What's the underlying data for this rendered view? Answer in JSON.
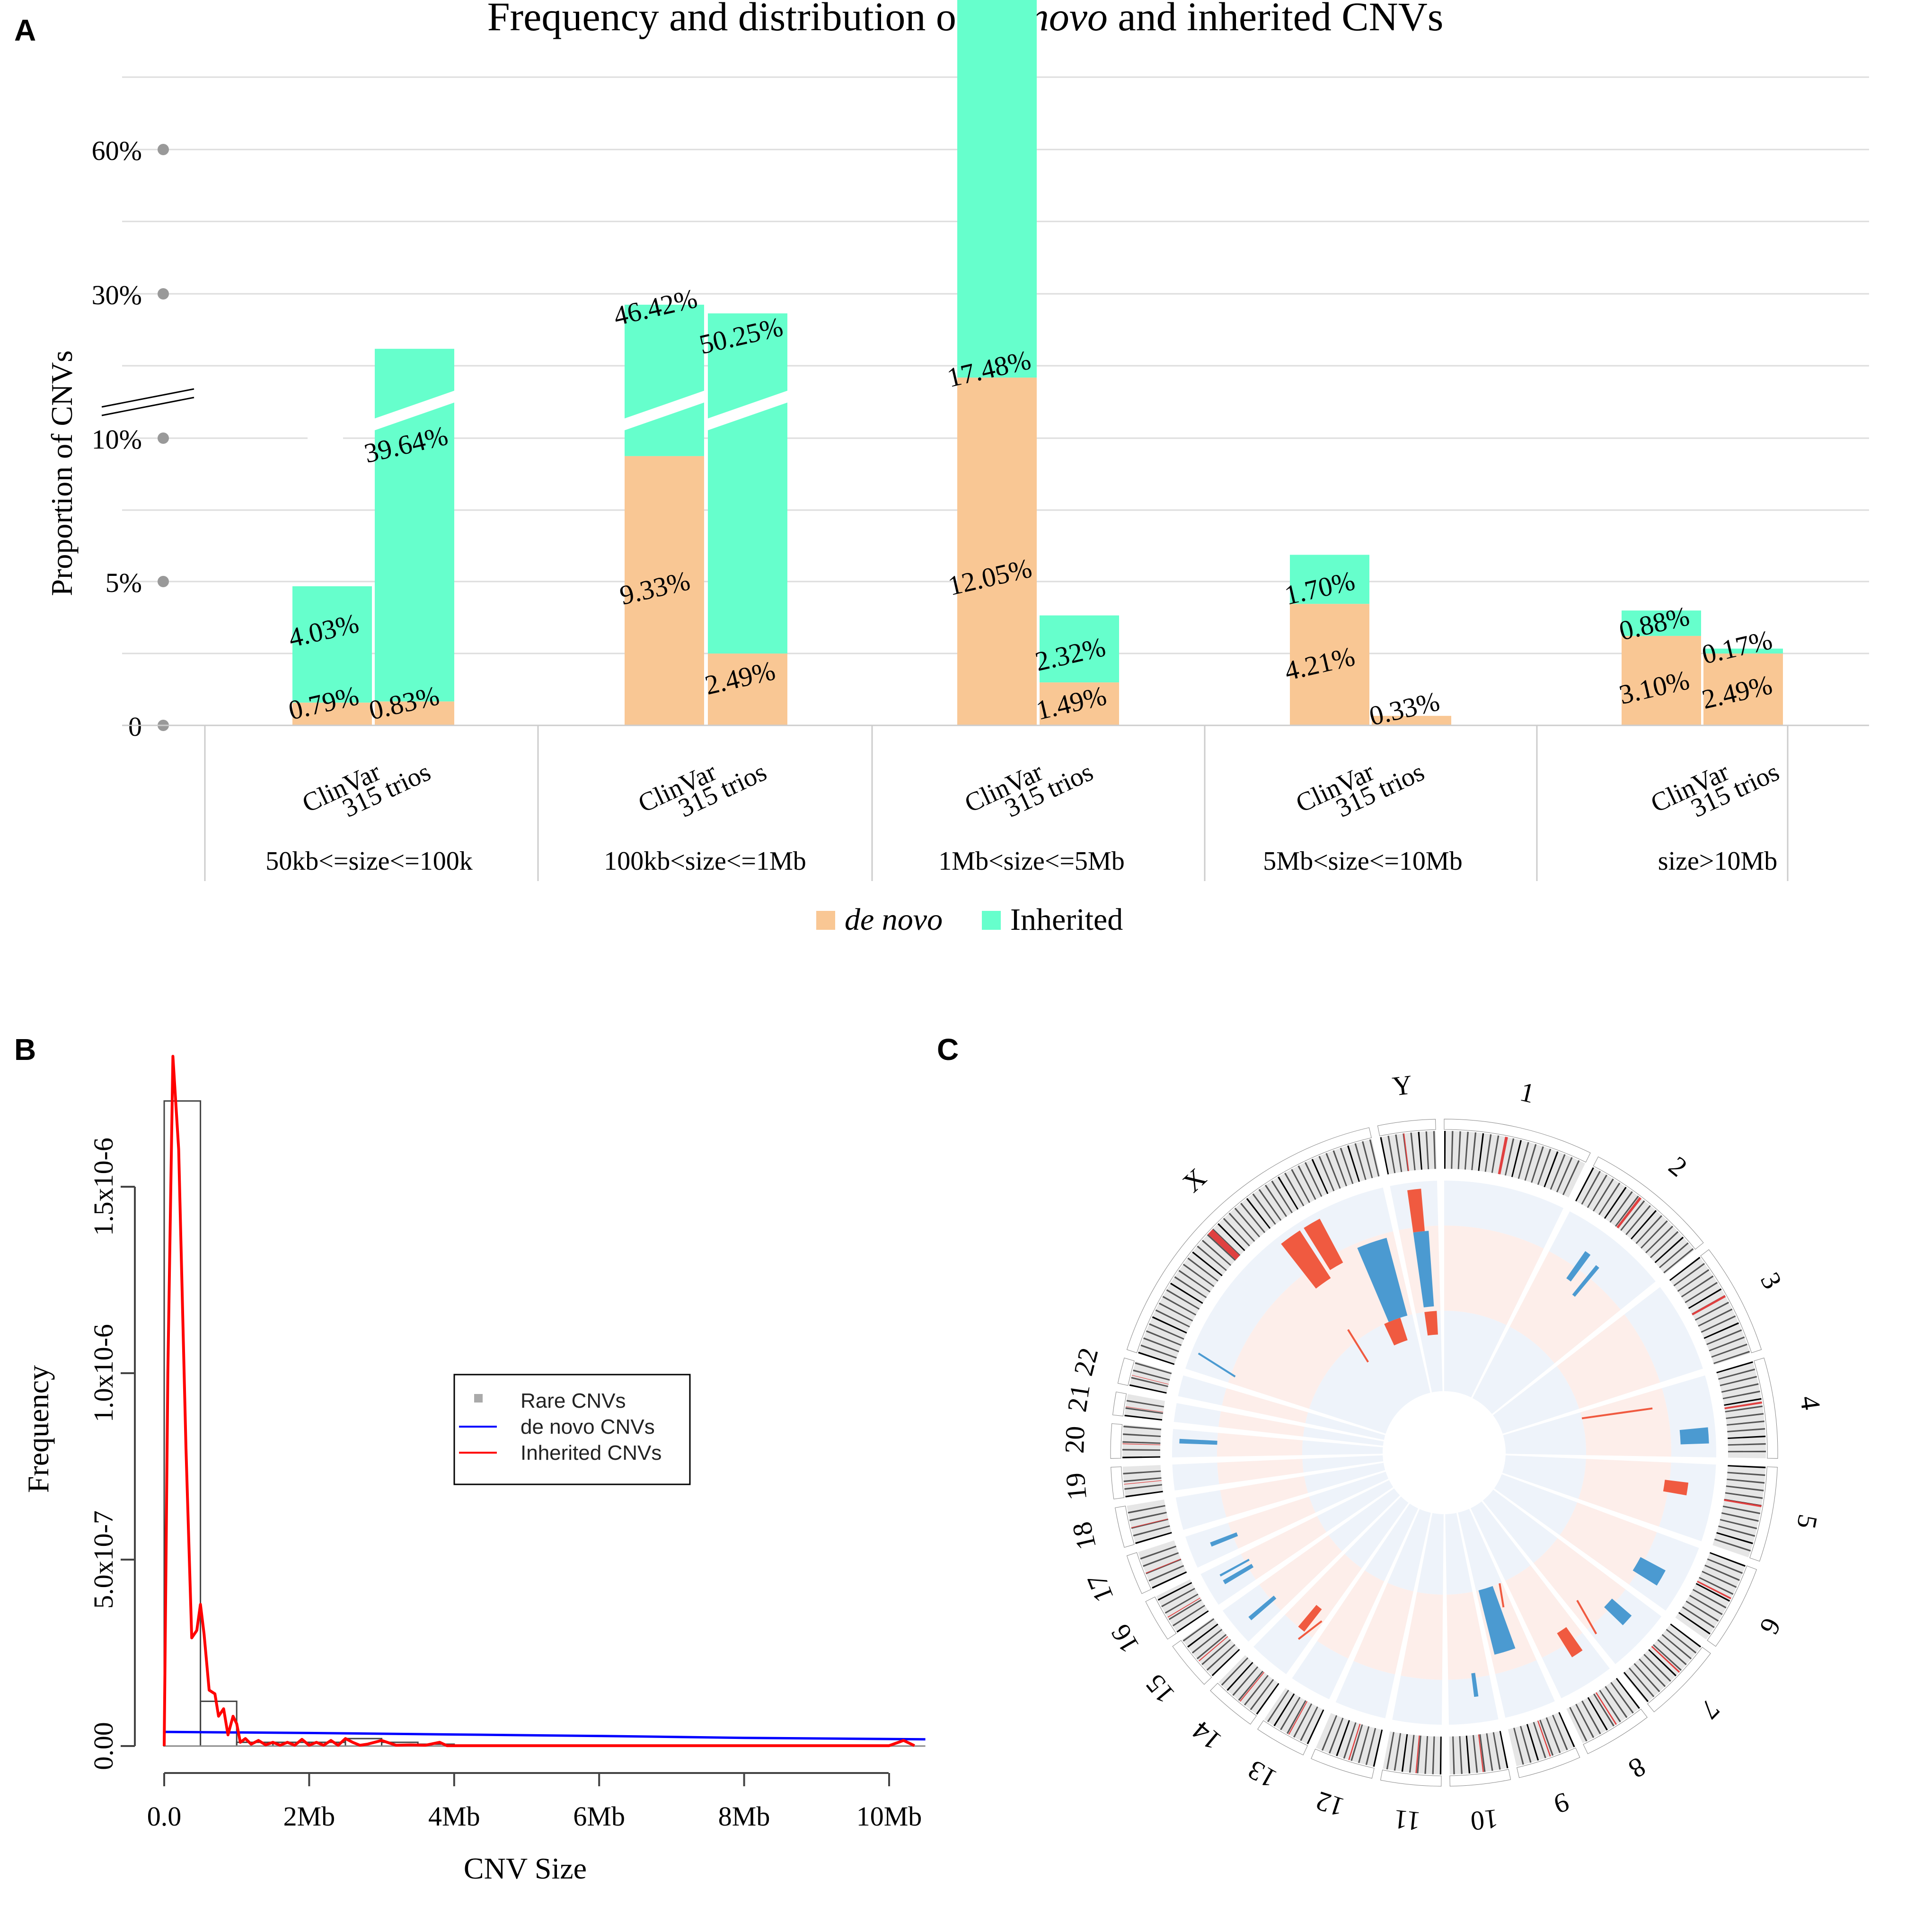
{
  "chart_data": [
    {
      "type": "bar",
      "panel": "A",
      "title_parts": [
        "Frequency and distribution of ",
        "de novo",
        " and inherited CNVs"
      ],
      "ylabel": "Proportion of CNVs",
      "y_ticks": [
        "60%",
        "30%",
        "10%",
        "5%",
        "0"
      ],
      "bar_labels": [
        "ClinVar",
        "315 trios"
      ],
      "groups": [
        {
          "label": "50kb<=size<=100k",
          "bars": [
            {
              "name": "ClinVar",
              "de_novo": 0.79,
              "inherited": 4.03
            },
            {
              "name": "315 trios",
              "de_novo": 0.83,
              "inherited": 39.64
            }
          ]
        },
        {
          "label": "100kb<size<=1Mb",
          "bars": [
            {
              "name": "ClinVar",
              "de_novo": 9.33,
              "inherited": 46.42
            },
            {
              "name": "315 trios",
              "de_novo": 2.49,
              "inherited": 50.25
            }
          ]
        },
        {
          "label": "1Mb<size<=5Mb",
          "bars": [
            {
              "name": "ClinVar",
              "de_novo": 12.05,
              "inherited": 17.48
            },
            {
              "name": "315 trios",
              "de_novo": 1.49,
              "inherited": 2.32
            }
          ]
        },
        {
          "label": "5Mb<size<=10Mb",
          "bars": [
            {
              "name": "ClinVar",
              "de_novo": 4.21,
              "inherited": 1.7
            },
            {
              "name": "315 trios",
              "de_novo": 0.33,
              "inherited": 0
            }
          ]
        },
        {
          "label": "size>10Mb",
          "bars": [
            {
              "name": "ClinVar",
              "de_novo": 3.1,
              "inherited": 0.88
            },
            {
              "name": "315 trios",
              "de_novo": 2.49,
              "inherited": 0.17
            }
          ]
        }
      ],
      "legend": [
        {
          "label": "de novo",
          "color": "#f9c794"
        },
        {
          "label": "Inherited",
          "color": "#66ffcc"
        }
      ],
      "axis_break": true
    },
    {
      "type": "line",
      "panel": "B",
      "xlabel": "CNV Size",
      "ylabel": "Frequency",
      "x_ticks": [
        "0.0",
        "2Mb",
        "4Mb",
        "6Mb",
        "8Mb",
        "10Mb"
      ],
      "y_ticks": [
        "0.00",
        "5.0x10-7",
        "1.0x10-6",
        "1.5x10-6"
      ],
      "xlim_mb": [
        0,
        10.5
      ],
      "ylim": [
        0,
        1.75e-06
      ],
      "legend": [
        {
          "label": "Rare CNVs",
          "color": "#aaaaaa"
        },
        {
          "label": "de novo CNVs",
          "color": "#0000ff"
        },
        {
          "label": "Inherited CNVs",
          "color": "#ff0000"
        }
      ],
      "series": [
        {
          "name": "Rare CNVs",
          "type": "histogram",
          "bin_width_mb": 0.5,
          "bins_mb": [
            0,
            0.5,
            1.0,
            1.5,
            2.0,
            2.5,
            3.0,
            3.5,
            4.0
          ],
          "values": [
            1.73e-06,
            1.2e-07,
            1e-08,
            1e-08,
            1e-08,
            2e-08,
            1e-08,
            5e-09
          ]
        },
        {
          "name": "de novo CNVs",
          "type": "density",
          "x_mb": [
            0,
            2,
            4,
            6,
            8,
            10.5
          ],
          "y": [
            3.8e-08,
            3.5e-08,
            3.1e-08,
            2.7e-08,
            2.2e-08,
            1.8e-08
          ]
        },
        {
          "name": "Inherited CNVs",
          "type": "density",
          "x_mb": [
            0.0,
            0.05,
            0.12,
            0.2,
            0.3,
            0.38,
            0.45,
            0.5,
            0.55,
            0.62,
            0.7,
            0.75,
            0.82,
            0.88,
            0.95,
            1.0,
            1.05,
            1.12,
            1.2,
            1.3,
            1.4,
            1.5,
            1.6,
            1.7,
            1.8,
            1.9,
            2.0,
            2.1,
            2.2,
            2.3,
            2.4,
            2.5,
            2.6,
            2.7,
            2.8,
            3.0,
            3.2,
            3.4,
            3.6,
            3.8,
            3.9,
            4.2,
            6.0,
            8.0,
            10.0,
            10.2,
            10.35
          ],
          "y": [
            0.0,
            1e-06,
            1.85e-06,
            1.6e-06,
            8e-07,
            2.9e-07,
            3.1e-07,
            3.8e-07,
            3e-07,
            1.5e-07,
            1.4e-07,
            8e-08,
            1e-07,
            3e-08,
            8e-08,
            6e-08,
            1e-08,
            2e-08,
            5e-09,
            1.5e-08,
            3e-09,
            1e-08,
            2e-09,
            1e-08,
            2e-09,
            1.8e-08,
            2e-09,
            1e-08,
            2e-09,
            1.5e-08,
            2e-09,
            2e-08,
            1e-08,
            2e-09,
            5e-09,
            1.5e-08,
            2e-09,
            3e-09,
            2e-09,
            1e-08,
            1e-09,
            1e-09,
            1e-09,
            1e-09,
            1e-09,
            1.5e-08,
            1e-09
          ]
        }
      ]
    },
    {
      "type": "circos",
      "panel": "C",
      "chromosomes": [
        "1",
        "2",
        "3",
        "4",
        "5",
        "6",
        "7",
        "8",
        "9",
        "10",
        "11",
        "12",
        "13",
        "14",
        "15",
        "16",
        "17",
        "18",
        "19",
        "20",
        "21",
        "22",
        "X",
        "Y"
      ],
      "ring_colors": {
        "outer": "#eef3fa",
        "middle": "#fdeeea",
        "inner": "#eef3fa"
      },
      "cnv_colors": {
        "red": "#f05a40",
        "blue": "#4b9ad1"
      }
    }
  ],
  "panel_labels": {
    "a": "A",
    "b": "B",
    "c": "C"
  }
}
